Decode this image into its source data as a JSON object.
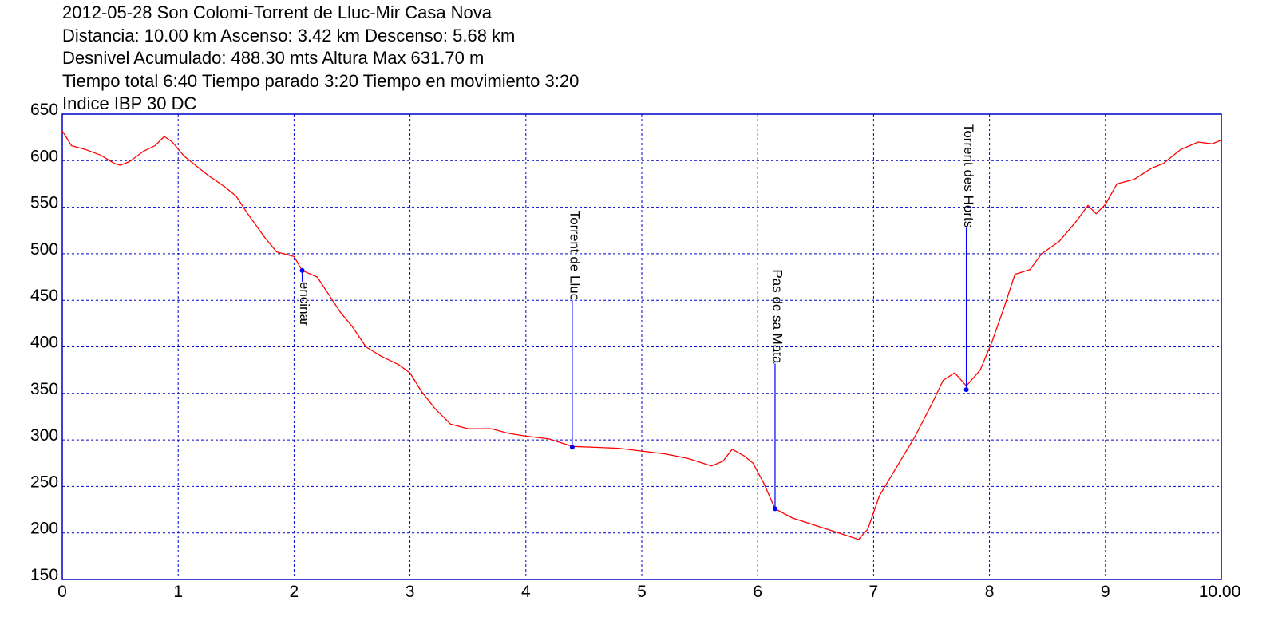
{
  "header": {
    "lines": [
      "2012-05-28 Son Colomi-Torrent de Lluc-Mir Casa Nova",
      "Distancia: 10.00 km Ascenso: 3.42 km Descenso: 5.68 km",
      "Desnivel Acumulado: 488.30 mts  Altura Max 631.70 m",
      "Tiempo total 6:40 Tiempo parado 3:20 Tiempo en movimiento 3:20",
      "Indice IBP 30 DC"
    ]
  },
  "colors": {
    "frame": "#0000cc",
    "grid": "#0000cc",
    "profile": "#ff0000",
    "marker": "#0000ff",
    "text": "#000000"
  },
  "chart_data": {
    "type": "line",
    "xlim": [
      0,
      10
    ],
    "ylim": [
      150,
      650
    ],
    "grid": true,
    "x_ticks": [
      {
        "value": 0,
        "label": "0"
      },
      {
        "value": 1,
        "label": "1"
      },
      {
        "value": 2,
        "label": "2"
      },
      {
        "value": 3,
        "label": "3"
      },
      {
        "value": 4,
        "label": "4"
      },
      {
        "value": 5,
        "label": "5"
      },
      {
        "value": 6,
        "label": "6"
      },
      {
        "value": 7,
        "label": "7"
      },
      {
        "value": 8,
        "label": "8"
      },
      {
        "value": 9,
        "label": "9"
      },
      {
        "value": 10,
        "label": "10.00"
      }
    ],
    "y_ticks": [
      {
        "value": 150,
        "label": "150"
      },
      {
        "value": 200,
        "label": "200"
      },
      {
        "value": 250,
        "label": "250"
      },
      {
        "value": 300,
        "label": "300"
      },
      {
        "value": 350,
        "label": "350"
      },
      {
        "value": 400,
        "label": "400"
      },
      {
        "value": 450,
        "label": "450"
      },
      {
        "value": 500,
        "label": "500"
      },
      {
        "value": 550,
        "label": "550"
      },
      {
        "value": 600,
        "label": "600"
      },
      {
        "value": 650,
        "label": "650"
      }
    ],
    "series": [
      {
        "points": [
          [
            0.0,
            632
          ],
          [
            0.08,
            616
          ],
          [
            0.2,
            612
          ],
          [
            0.33,
            606
          ],
          [
            0.45,
            597
          ],
          [
            0.5,
            595
          ],
          [
            0.58,
            599
          ],
          [
            0.7,
            610
          ],
          [
            0.8,
            616
          ],
          [
            0.88,
            626
          ],
          [
            0.95,
            620
          ],
          [
            1.05,
            605
          ],
          [
            1.15,
            595
          ],
          [
            1.25,
            585
          ],
          [
            1.4,
            572
          ],
          [
            1.5,
            562
          ],
          [
            1.6,
            543
          ],
          [
            1.75,
            517
          ],
          [
            1.85,
            502
          ],
          [
            2.0,
            497
          ],
          [
            2.07,
            482
          ],
          [
            2.2,
            475
          ],
          [
            2.3,
            456
          ],
          [
            2.4,
            437
          ],
          [
            2.5,
            422
          ],
          [
            2.62,
            400
          ],
          [
            2.75,
            390
          ],
          [
            2.9,
            381
          ],
          [
            3.0,
            372
          ],
          [
            3.1,
            352
          ],
          [
            3.22,
            333
          ],
          [
            3.35,
            317
          ],
          [
            3.5,
            312
          ],
          [
            3.7,
            312
          ],
          [
            3.85,
            307
          ],
          [
            4.0,
            304
          ],
          [
            4.2,
            301
          ],
          [
            4.4,
            293
          ],
          [
            4.6,
            292
          ],
          [
            4.8,
            291
          ],
          [
            5.0,
            288
          ],
          [
            5.2,
            285
          ],
          [
            5.4,
            280
          ],
          [
            5.6,
            272
          ],
          [
            5.7,
            277
          ],
          [
            5.78,
            290
          ],
          [
            5.88,
            283
          ],
          [
            5.96,
            275
          ],
          [
            6.05,
            254
          ],
          [
            6.15,
            226
          ],
          [
            6.3,
            216
          ],
          [
            6.5,
            208
          ],
          [
            6.7,
            200
          ],
          [
            6.87,
            193
          ],
          [
            6.95,
            204
          ],
          [
            7.05,
            240
          ],
          [
            7.2,
            271
          ],
          [
            7.35,
            302
          ],
          [
            7.5,
            338
          ],
          [
            7.6,
            364
          ],
          [
            7.7,
            372
          ],
          [
            7.8,
            358
          ],
          [
            7.92,
            375
          ],
          [
            8.02,
            405
          ],
          [
            8.12,
            440
          ],
          [
            8.22,
            478
          ],
          [
            8.35,
            483
          ],
          [
            8.45,
            500
          ],
          [
            8.6,
            513
          ],
          [
            8.75,
            535
          ],
          [
            8.85,
            552
          ],
          [
            8.92,
            543
          ],
          [
            9.0,
            553
          ],
          [
            9.1,
            575
          ],
          [
            9.25,
            580
          ],
          [
            9.4,
            592
          ],
          [
            9.5,
            597
          ],
          [
            9.65,
            612
          ],
          [
            9.8,
            620
          ],
          [
            9.92,
            618
          ],
          [
            10.0,
            622
          ]
        ]
      }
    ],
    "annotations": [
      {
        "x": 2.07,
        "y": 482,
        "label": "encinar",
        "label_y": 470
      },
      {
        "x": 4.4,
        "y": 292,
        "label": "Torrent de Lluc",
        "label_y": 450
      },
      {
        "x": 6.15,
        "y": 226,
        "label": "Pas de sa Mata",
        "label_y": 382
      },
      {
        "x": 7.8,
        "y": 354,
        "label": "Torrent des Horts",
        "label_y": 528
      }
    ]
  }
}
